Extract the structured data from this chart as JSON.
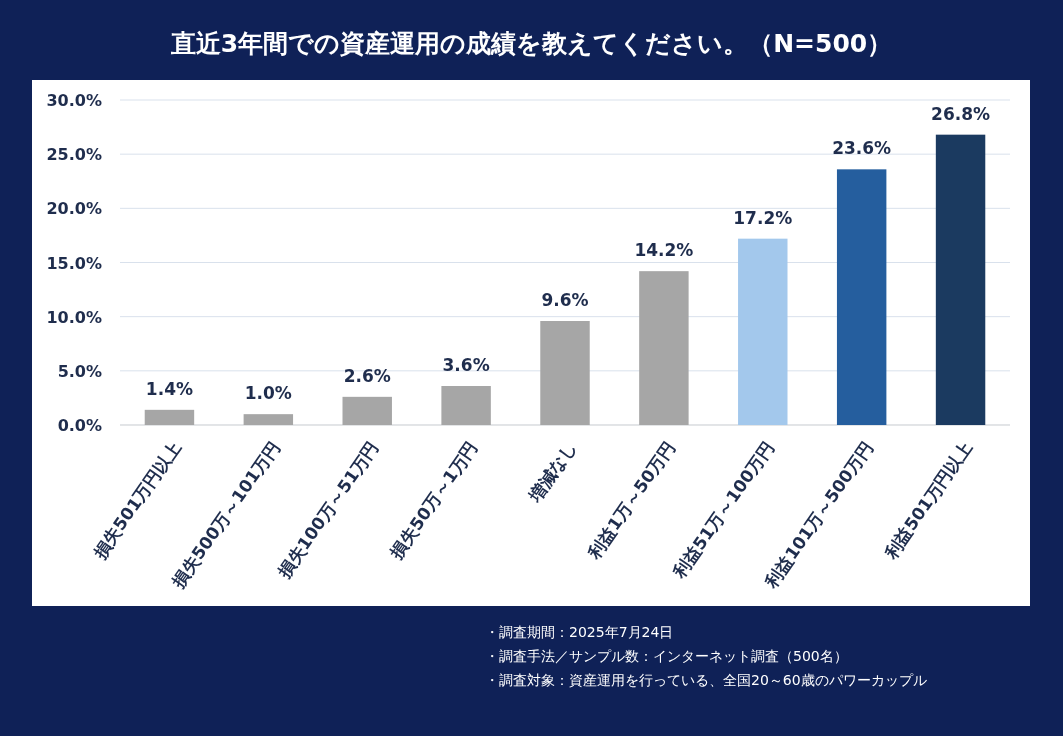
{
  "chart_data": {
    "type": "bar",
    "title": "直近3年間での資産運用の成績を教えてください。（N=500）",
    "categories": [
      "損失501万円以上",
      "損失500万～101万円",
      "損失100万～51万円",
      "損失50万～1万円",
      "増減なし",
      "利益1万～50万円",
      "利益51万～100万円",
      "利益101万～500万円",
      "利益501万円以上"
    ],
    "values": [
      1.4,
      1.0,
      2.6,
      3.6,
      9.6,
      14.2,
      17.2,
      23.6,
      26.8
    ],
    "colors": [
      "#a6a6a6",
      "#a6a6a6",
      "#a6a6a6",
      "#a6a6a6",
      "#a6a6a6",
      "#a6a6a6",
      "#a3c8ec",
      "#255e9e",
      "#1b3a60"
    ],
    "value_labels": [
      "1.4%",
      "1.0%",
      "2.6%",
      "3.6%",
      "9.6%",
      "14.2%",
      "17.2%",
      "23.6%",
      "26.8%"
    ],
    "ylim": [
      0,
      30
    ],
    "yticks": [
      {
        "value": 0,
        "label": "0.0%"
      },
      {
        "value": 5,
        "label": "5.0%"
      },
      {
        "value": 10,
        "label": "10.0%"
      },
      {
        "value": 15,
        "label": "15.0%"
      },
      {
        "value": 20,
        "label": "20.0%"
      },
      {
        "value": 25,
        "label": "25.0%"
      },
      {
        "value": 30,
        "label": "30.0%"
      }
    ],
    "grid": "y",
    "annotations": [
      "・調査期間：2025年7月24日",
      "・調査手法／サンプル数：インターネット調査（500名）",
      "・調査対象：資産運用を行っている、全国20～60歳のパワーカップル"
    ]
  }
}
